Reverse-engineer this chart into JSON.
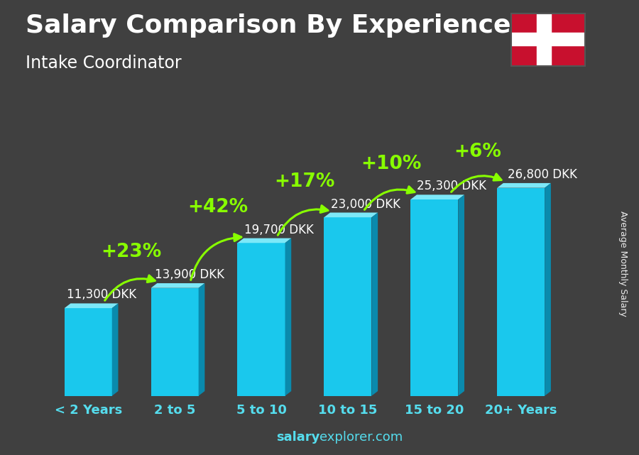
{
  "categories": [
    "< 2 Years",
    "2 to 5",
    "5 to 10",
    "10 to 15",
    "15 to 20",
    "20+ Years"
  ],
  "values": [
    11300,
    13900,
    19700,
    23000,
    25300,
    26800
  ],
  "labels": [
    "11,300 DKK",
    "13,900 DKK",
    "19,700 DKK",
    "23,000 DKK",
    "25,300 DKK",
    "26,800 DKK"
  ],
  "pct_changes": [
    null,
    "+23%",
    "+42%",
    "+17%",
    "+10%",
    "+6%"
  ],
  "title_line1": "Salary Comparison By Experience",
  "subtitle": "Intake Coordinator",
  "ylabel_rotated": "Average Monthly Salary",
  "footer_bold": "salary",
  "footer_normal": "explorer.com",
  "bar_color_front": "#1AC8ED",
  "bar_color_top": "#7DE8F8",
  "bar_color_side": "#0A8AAD",
  "pct_color": "#88FF00",
  "label_color": "#FFFFFF",
  "bg_color": "#484848",
  "title_color": "#FFFFFF",
  "tick_color": "#55DDEE",
  "bar_width": 0.55,
  "ylim": [
    0,
    34000
  ],
  "title_fontsize": 26,
  "subtitle_fontsize": 17,
  "pct_fontsize": 19,
  "label_fontsize": 12,
  "tick_fontsize": 13,
  "footer_fontsize": 13
}
